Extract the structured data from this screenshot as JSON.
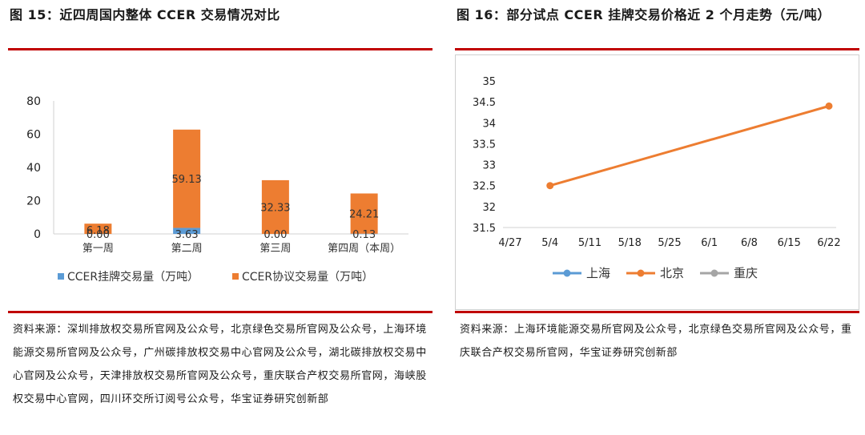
{
  "left": {
    "title": "图 15：近四周国内整体 CCER 交易情况对比",
    "source": "资料来源：深圳排放权交易所官网及公众号，北京绿色交易所官网及公众号，上海环境能源交易所官网及公众号，广州碳排放权交易中心官网及公众号，湖北碳排放权交易中心官网及公众号，天津排放权交易所官网及公众号，重庆联合产权交易所官网，海峡股权交易中心官网，四川环交所订阅号公众号，华宝证券研究创新部"
  },
  "right": {
    "title": "图 16：部分试点 CCER 挂牌交易价格近 2 个月走势（元/吨）",
    "source": "资料来源：上海环境能源交易所官网及公众号，北京绿色交易所官网及公众号，重庆联合产权交易所官网，华宝证券研究创新部"
  },
  "chart_data": [
    {
      "type": "bar",
      "stacked": true,
      "categories": [
        "第一周",
        "第二周",
        "第三周",
        "第四周（本周）"
      ],
      "series": [
        {
          "name": "CCER挂牌交易量（万吨）",
          "values": [
            0.0,
            3.63,
            0.0,
            0.13
          ],
          "color": "#5b9bd5"
        },
        {
          "name": "CCER协议交易量（万吨）",
          "values": [
            6.18,
            59.13,
            32.33,
            24.21
          ],
          "color": "#ed7d31"
        }
      ],
      "y_ticks": [
        "0",
        "20",
        "40",
        "60",
        "80"
      ],
      "ylim": [
        0,
        80
      ],
      "grid": false,
      "legend_position": "bottom"
    },
    {
      "type": "line",
      "x_ticks": [
        "4/27",
        "5/4",
        "5/11",
        "5/18",
        "5/25",
        "6/1",
        "6/8",
        "6/15",
        "6/22"
      ],
      "y_ticks": [
        "31.5",
        "32",
        "32.5",
        "33",
        "33.5",
        "34",
        "34.5",
        "35"
      ],
      "ylim": [
        31.5,
        35
      ],
      "grid": false,
      "legend_position": "bottom",
      "series": [
        {
          "name": "上海",
          "color": "#5b9bd5",
          "points": []
        },
        {
          "name": "北京",
          "color": "#ed7d31",
          "points": [
            {
              "x": "5/4",
              "y": 32.5
            },
            {
              "x": "6/22",
              "y": 34.4
            }
          ]
        },
        {
          "name": "重庆",
          "color": "#a5a5a5",
          "points": []
        }
      ]
    }
  ]
}
